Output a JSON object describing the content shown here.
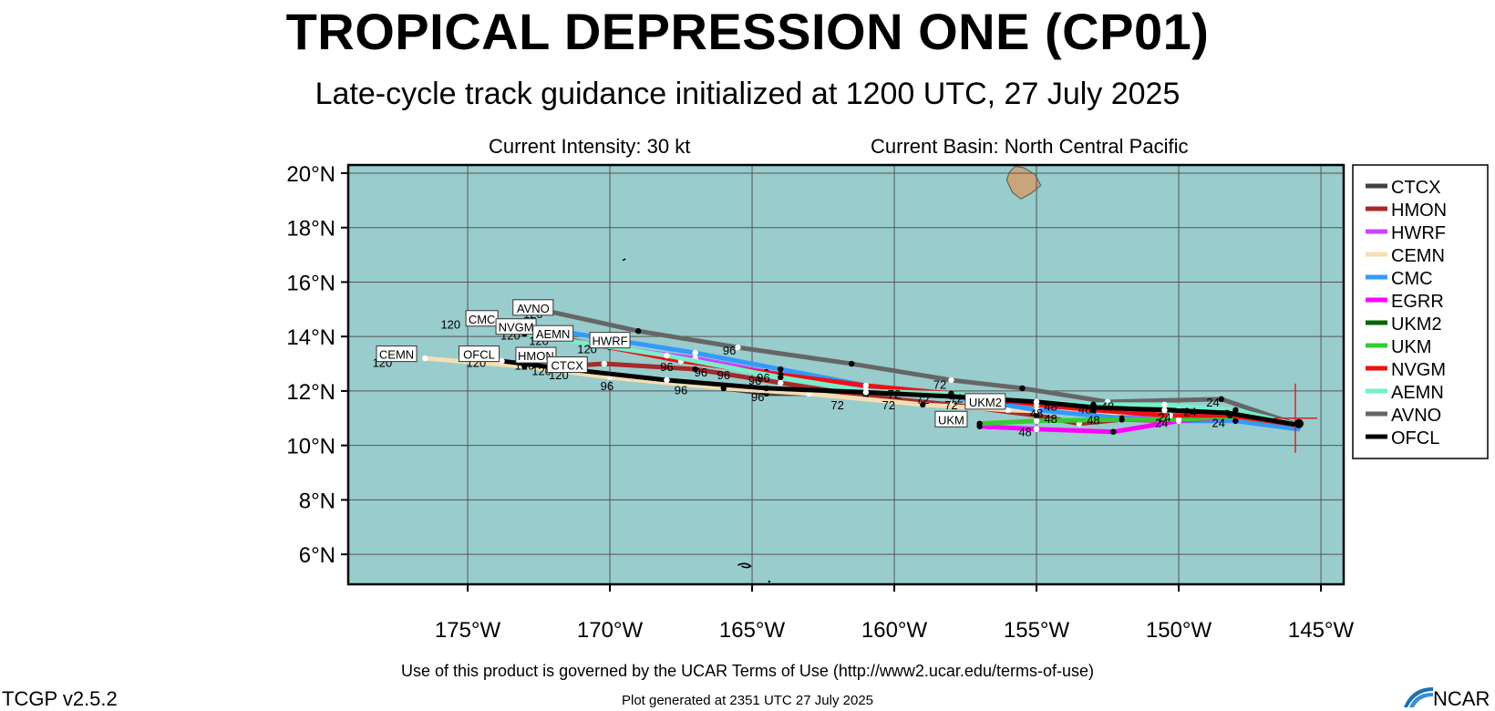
{
  "title": "TROPICAL DEPRESSION ONE (CP01)",
  "subtitle": "Late-cycle track guidance initialized at 1200 UTC, 27 July 2025",
  "current_intensity": "Current Intensity: 30 kt",
  "current_basin": "Current Basin: North Central Pacific",
  "terms_of_use": "Use of this product is governed by the UCAR Terms of Use (http://www2.ucar.edu/terms-of-use)",
  "version": "TCGP v2.5.2",
  "generated": "Plot generated at 2351 UTC   27 July 2025",
  "logo_text": "NCAR",
  "map": {
    "lon_range": [
      -179.2,
      -144.2
    ],
    "lat_range": [
      4.9,
      20.3
    ],
    "grid": true,
    "ocean_color": "#99cccc",
    "land_color": "#c8a57a",
    "lat_ticks": [
      6,
      8,
      10,
      12,
      14,
      16,
      18,
      20
    ],
    "lat_tick_labels": [
      "6°N",
      "8°N",
      "10°N",
      "12°N",
      "14°N",
      "16°N",
      "18°N",
      "20°N"
    ],
    "lon_ticks": [
      -175,
      -170,
      -165,
      -160,
      -155,
      -150,
      -145
    ],
    "lon_tick_labels": [
      "175°W",
      "170°W",
      "165°W",
      "160°W",
      "155°W",
      "150°W",
      "145°W"
    ],
    "current_position": [
      -145.9,
      11.0
    ]
  },
  "tracks": [
    {
      "name": "AVNO",
      "color": "#666666",
      "points": [
        [
          -145.8,
          10.75
        ],
        [
          -148.5,
          11.7
        ],
        [
          -152.5,
          11.6
        ],
        [
          -155.5,
          12.1
        ],
        [
          -158,
          12.4
        ],
        [
          -161.5,
          13.0
        ],
        [
          -165.5,
          13.6
        ],
        [
          -169,
          14.2
        ],
        [
          -172.7,
          15.05
        ]
      ]
    },
    {
      "name": "CTCX",
      "color": "#404040",
      "points": [
        [
          -145.8,
          10.75
        ],
        [
          -148.2,
          11.05
        ],
        [
          -150.5,
          11.0
        ],
        [
          -152,
          11.2
        ],
        [
          -155,
          11.6
        ],
        [
          -158,
          11.9
        ],
        [
          -161,
          11.9
        ],
        [
          -164.5,
          11.9
        ],
        [
          -167.5,
          12.3
        ],
        [
          -170.5,
          12.6
        ],
        [
          -172.0,
          12.85
        ]
      ]
    },
    {
      "name": "HMON",
      "color": "#a52a2a",
      "points": [
        [
          -145.8,
          10.75
        ],
        [
          -148,
          11.0
        ],
        [
          -150,
          10.9
        ],
        [
          -152,
          10.95
        ],
        [
          -153.5,
          10.8
        ],
        [
          -155,
          11.1
        ],
        [
          -158,
          11.5
        ],
        [
          -161,
          11.8
        ],
        [
          -164,
          12.3
        ],
        [
          -167,
          12.8
        ],
        [
          -170.2,
          13.0
        ],
        [
          -171.8,
          12.9
        ]
      ]
    },
    {
      "name": "HWRF",
      "color": "#cc44ff",
      "points": [
        [
          -145.8,
          10.75
        ],
        [
          -148.3,
          11.1
        ],
        [
          -150.5,
          11.0
        ],
        [
          -153,
          11.2
        ],
        [
          -155,
          11.3
        ],
        [
          -158,
          11.8
        ],
        [
          -161,
          12.1
        ],
        [
          -164.5,
          12.7
        ],
        [
          -167,
          13.2
        ],
        [
          -170,
          13.6
        ]
      ]
    },
    {
      "name": "CEMN",
      "color": "#f5deb3",
      "points": [
        [
          -145.8,
          10.75
        ],
        [
          -148,
          10.9
        ],
        [
          -150.5,
          11.2
        ],
        [
          -153,
          11.2
        ],
        [
          -156,
          11.3
        ],
        [
          -159,
          11.5
        ],
        [
          -163,
          11.9
        ],
        [
          -166,
          12.1
        ],
        [
          -170,
          12.5
        ],
        [
          -173,
          12.9
        ],
        [
          -176.5,
          13.2
        ]
      ]
    },
    {
      "name": "CMC",
      "color": "#3399ff",
      "points": [
        [
          -145.8,
          10.6
        ],
        [
          -148,
          10.9
        ],
        [
          -150,
          10.9
        ],
        [
          -152,
          11.0
        ],
        [
          -155,
          11.3
        ],
        [
          -158,
          11.8
        ],
        [
          -161,
          12.2
        ],
        [
          -164,
          12.8
        ],
        [
          -167,
          13.4
        ],
        [
          -170,
          13.9
        ],
        [
          -174.5,
          14.65
        ]
      ]
    },
    {
      "name": "EGRR",
      "color": "#ff00ff",
      "points": [
        [
          -145.8,
          10.75
        ],
        [
          -148,
          11.05
        ],
        [
          -150,
          10.9
        ],
        [
          -152.3,
          10.5
        ],
        [
          -155,
          10.6
        ],
        [
          -157,
          10.7
        ]
      ]
    },
    {
      "name": "UKM2",
      "color": "#006600",
      "points": [
        [
          -145.8,
          10.75
        ],
        [
          -148,
          11.1
        ],
        [
          -150,
          11.3
        ],
        [
          -152,
          11.35
        ],
        [
          -154,
          11.5
        ],
        [
          -155.5,
          11.6
        ],
        [
          -157.2,
          11.65
        ]
      ]
    },
    {
      "name": "UKM",
      "color": "#33cc33",
      "points": [
        [
          -145.8,
          10.75
        ],
        [
          -148,
          11.05
        ],
        [
          -150,
          10.95
        ],
        [
          -152,
          10.95
        ],
        [
          -155,
          10.9
        ],
        [
          -157,
          10.8
        ]
      ]
    },
    {
      "name": "NVGM",
      "color": "#ee1111",
      "points": [
        [
          -145.8,
          10.75
        ],
        [
          -148.2,
          11.1
        ],
        [
          -150.3,
          11.1
        ],
        [
          -153,
          11.3
        ],
        [
          -155,
          11.5
        ],
        [
          -158,
          11.9
        ],
        [
          -161,
          12.2
        ],
        [
          -164,
          12.6
        ],
        [
          -167.5,
          13.1
        ],
        [
          -171.5,
          13.9
        ],
        [
          -172.5,
          14.1
        ]
      ]
    },
    {
      "name": "AEMN",
      "color": "#77eecc",
      "points": [
        [
          -145.8,
          10.75
        ],
        [
          -148,
          11.3
        ],
        [
          -150.5,
          11.5
        ],
        [
          -153,
          11.5
        ],
        [
          -155,
          11.6
        ],
        [
          -158,
          11.9
        ],
        [
          -161,
          12.0
        ],
        [
          -164,
          12.5
        ],
        [
          -168,
          13.3
        ],
        [
          -173,
          14.1
        ]
      ]
    },
    {
      "name": "OFCL",
      "color": "#000000",
      "points": [
        [
          -145.8,
          10.75
        ],
        [
          -148.3,
          11.2
        ],
        [
          -150.5,
          11.3
        ],
        [
          -153,
          11.4
        ],
        [
          -155,
          11.6
        ],
        [
          -158,
          11.8
        ],
        [
          -161,
          11.95
        ],
        [
          -164.5,
          12.1
        ],
        [
          -168,
          12.4
        ],
        [
          -171.5,
          12.8
        ],
        [
          -173.8,
          13.1
        ]
      ]
    }
  ],
  "track_end_labels": [
    {
      "name": "AVNO",
      "at": [
        -172.7,
        15.05
      ]
    },
    {
      "name": "CMC",
      "at": [
        -174.5,
        14.65
      ]
    },
    {
      "name": "NVGM",
      "at": [
        -173.3,
        14.35
      ]
    },
    {
      "name": "AEMN",
      "at": [
        -172.0,
        14.1
      ]
    },
    {
      "name": "HWRF",
      "at": [
        -170.0,
        13.85
      ]
    },
    {
      "name": "CEMN",
      "at": [
        -177.5,
        13.35
      ]
    },
    {
      "name": "OFCL",
      "at": [
        -174.6,
        13.35
      ]
    },
    {
      "name": "HMON",
      "at": [
        -172.6,
        13.3
      ]
    },
    {
      "name": "CTCX",
      "at": [
        -171.5,
        12.95
      ]
    },
    {
      "name": "UKM2",
      "at": [
        -156.8,
        11.6
      ]
    },
    {
      "name": "UKM",
      "at": [
        -158.0,
        10.95
      ]
    }
  ],
  "hour_labels": [
    {
      "text": "120",
      "at": [
        -172.7,
        14.85
      ]
    },
    {
      "text": "120",
      "at": [
        -175.6,
        14.45
      ]
    },
    {
      "text": "120",
      "at": [
        -173.5,
        14.05
      ]
    },
    {
      "text": "120",
      "at": [
        -172.5,
        13.85
      ]
    },
    {
      "text": "120",
      "at": [
        -170.8,
        13.55
      ]
    },
    {
      "text": "120",
      "at": [
        -178.0,
        13.05
      ]
    },
    {
      "text": "120",
      "at": [
        -174.7,
        13.05
      ]
    },
    {
      "text": "120",
      "at": [
        -173.0,
        12.95
      ]
    },
    {
      "text": "120",
      "at": [
        -172.4,
        12.75
      ]
    },
    {
      "text": "120",
      "at": [
        -171.8,
        12.6
      ]
    },
    {
      "text": "96",
      "at": [
        -165.8,
        13.5
      ]
    },
    {
      "text": "96",
      "at": [
        -168.0,
        12.9
      ]
    },
    {
      "text": "96",
      "at": [
        -166.8,
        12.7
      ]
    },
    {
      "text": "96",
      "at": [
        -166.0,
        12.6
      ]
    },
    {
      "text": "96",
      "at": [
        -164.9,
        12.4
      ]
    },
    {
      "text": "96",
      "at": [
        -164.6,
        12.5
      ]
    },
    {
      "text": "96",
      "at": [
        -170.1,
        12.2
      ]
    },
    {
      "text": "96",
      "at": [
        -167.5,
        12.05
      ]
    },
    {
      "text": "96",
      "at": [
        -164.8,
        11.8
      ]
    },
    {
      "text": "72",
      "at": [
        -158.4,
        12.25
      ]
    },
    {
      "text": "72",
      "at": [
        -160.0,
        11.9
      ]
    },
    {
      "text": "72",
      "at": [
        -159.0,
        11.7
      ]
    },
    {
      "text": "72",
      "at": [
        -157.8,
        11.75
      ]
    },
    {
      "text": "72",
      "at": [
        -162.0,
        11.5
      ]
    },
    {
      "text": "72",
      "at": [
        -160.2,
        11.5
      ]
    },
    {
      "text": "72",
      "at": [
        -158.0,
        11.5
      ]
    },
    {
      "text": "48",
      "at": [
        -154.5,
        11.45
      ]
    },
    {
      "text": "48",
      "at": [
        -153.3,
        11.35
      ]
    },
    {
      "text": "48",
      "at": [
        -152.5,
        11.45
      ]
    },
    {
      "text": "48",
      "at": [
        -155.0,
        11.2
      ]
    },
    {
      "text": "48",
      "at": [
        -153.0,
        10.95
      ]
    },
    {
      "text": "48",
      "at": [
        -154.5,
        11.0
      ]
    },
    {
      "text": "48",
      "at": [
        -155.4,
        10.5
      ]
    },
    {
      "text": "24",
      "at": [
        -148.8,
        11.6
      ]
    },
    {
      "text": "24",
      "at": [
        -149.6,
        11.25
      ]
    },
    {
      "text": "24",
      "at": [
        -150.5,
        11.05
      ]
    },
    {
      "text": "24",
      "at": [
        -150.6,
        10.85
      ]
    },
    {
      "text": "24",
      "at": [
        -148.6,
        10.85
      ]
    }
  ],
  "legend": [
    {
      "name": "CTCX",
      "color": "#404040"
    },
    {
      "name": "HMON",
      "color": "#a52a2a"
    },
    {
      "name": "HWRF",
      "color": "#cc44ff"
    },
    {
      "name": "CEMN",
      "color": "#f5deb3"
    },
    {
      "name": "CMC",
      "color": "#3399ff"
    },
    {
      "name": "EGRR",
      "color": "#ff00ff"
    },
    {
      "name": "UKM2",
      "color": "#006600"
    },
    {
      "name": "UKM",
      "color": "#33cc33"
    },
    {
      "name": "NVGM",
      "color": "#ee1111"
    },
    {
      "name": "AEMN",
      "color": "#77eecc"
    },
    {
      "name": "AVNO",
      "color": "#666666"
    },
    {
      "name": "OFCL",
      "color": "#000000"
    }
  ]
}
